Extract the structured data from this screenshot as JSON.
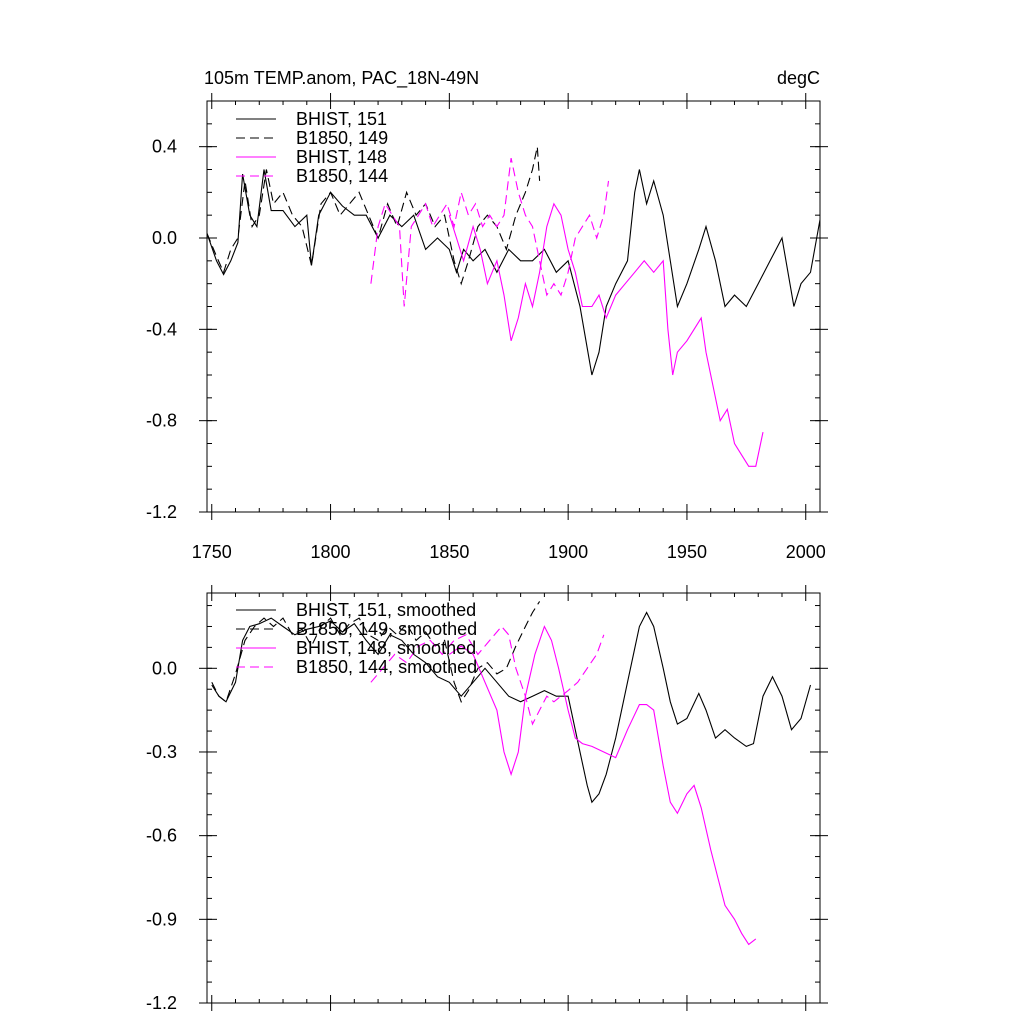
{
  "header": {
    "title": "105m TEMP.anom, PAC_18N-49N",
    "units": "degC"
  },
  "colors": {
    "bhist": "#000000",
    "magenta": "#ff00ff"
  },
  "chart_data": [
    {
      "type": "line",
      "xlim": [
        1748,
        2006
      ],
      "ylim": [
        -1.2,
        0.6
      ],
      "x_ticks": [
        1750,
        1800,
        1850,
        1900,
        1950,
        2000
      ],
      "x_tick_labels": [
        "1750",
        "1800",
        "1850",
        "1900",
        "1950",
        "2000"
      ],
      "y_ticks": [
        0.4,
        0.0,
        -0.4,
        -0.8,
        -1.2
      ],
      "y_tick_labels": [
        "0.4",
        "0.0",
        "-0.4",
        "-0.8",
        "-1.2"
      ],
      "legend_position": "top-left",
      "series": [
        {
          "name": "BHIST, 151",
          "color": "#000000",
          "dash": "solid",
          "x": [
            1748,
            1752,
            1755,
            1758,
            1761,
            1763,
            1766,
            1769,
            1772,
            1775,
            1780,
            1785,
            1790,
            1792,
            1795,
            1800,
            1805,
            1810,
            1815,
            1820,
            1825,
            1830,
            1835,
            1840,
            1845,
            1850,
            1853,
            1856,
            1860,
            1865,
            1870,
            1875,
            1880,
            1885,
            1890,
            1895,
            1900,
            1905,
            1910,
            1913,
            1916,
            1920,
            1925,
            1928,
            1930,
            1933,
            1936,
            1940,
            1943,
            1946,
            1950,
            1955,
            1958,
            1962,
            1966,
            1970,
            1975,
            1980,
            1985,
            1990,
            1995,
            1998,
            2002,
            2006
          ],
          "y": [
            0.02,
            -0.1,
            -0.16,
            -0.1,
            -0.02,
            0.28,
            0.1,
            0.05,
            0.3,
            0.12,
            0.12,
            0.05,
            0.1,
            -0.12,
            0.1,
            0.2,
            0.14,
            0.1,
            0.1,
            0.0,
            0.1,
            0.05,
            0.1,
            -0.05,
            0.0,
            -0.05,
            -0.15,
            -0.05,
            -0.1,
            -0.05,
            -0.15,
            -0.05,
            -0.1,
            -0.1,
            -0.05,
            -0.15,
            -0.1,
            -0.3,
            -0.6,
            -0.5,
            -0.3,
            -0.2,
            -0.1,
            0.2,
            0.3,
            0.15,
            0.25,
            0.1,
            -0.1,
            -0.3,
            -0.2,
            -0.05,
            0.05,
            -0.1,
            -0.3,
            -0.25,
            -0.3,
            -0.2,
            -0.1,
            0.0,
            -0.3,
            -0.2,
            -0.15,
            0.08
          ]
        },
        {
          "name": "B1850, 149",
          "color": "#000000",
          "dash": "dashed",
          "x": [
            1748,
            1752,
            1755,
            1758,
            1761,
            1764,
            1767,
            1770,
            1773,
            1776,
            1780,
            1784,
            1788,
            1792,
            1796,
            1800,
            1804,
            1808,
            1812,
            1816,
            1820,
            1824,
            1828,
            1832,
            1836,
            1840,
            1844,
            1848,
            1852,
            1855,
            1858,
            1862,
            1866,
            1870,
            1874,
            1878,
            1882,
            1885,
            1887,
            1888
          ],
          "y": [
            0.02,
            -0.08,
            -0.15,
            -0.05,
            0.0,
            0.25,
            0.05,
            0.1,
            0.3,
            0.15,
            0.2,
            0.1,
            0.05,
            -0.12,
            0.15,
            0.2,
            0.1,
            0.15,
            0.2,
            0.1,
            0.0,
            0.15,
            0.05,
            0.2,
            0.1,
            0.15,
            0.05,
            0.1,
            -0.1,
            -0.2,
            -0.1,
            0.05,
            0.1,
            0.05,
            -0.05,
            0.1,
            0.2,
            0.3,
            0.4,
            0.25
          ]
        },
        {
          "name": "BHIST, 148",
          "color": "#ff00ff",
          "dash": "solid",
          "x": [
            1850,
            1853,
            1856,
            1860,
            1863,
            1866,
            1870,
            1873,
            1876,
            1879,
            1882,
            1885,
            1888,
            1891,
            1894,
            1897,
            1900,
            1903,
            1906,
            1910,
            1913,
            1916,
            1920,
            1924,
            1928,
            1932,
            1936,
            1940,
            1942,
            1944,
            1946,
            1950,
            1953,
            1956,
            1958,
            1961,
            1964,
            1967,
            1970,
            1973,
            1976,
            1979,
            1982
          ],
          "y": [
            0.1,
            0.0,
            -0.1,
            0.05,
            -0.05,
            -0.2,
            -0.1,
            -0.25,
            -0.45,
            -0.35,
            -0.2,
            -0.3,
            -0.15,
            0.05,
            0.15,
            0.1,
            -0.05,
            -0.15,
            -0.3,
            -0.3,
            -0.25,
            -0.35,
            -0.25,
            -0.2,
            -0.15,
            -0.1,
            -0.15,
            -0.1,
            -0.4,
            -0.6,
            -0.5,
            -0.45,
            -0.4,
            -0.35,
            -0.5,
            -0.65,
            -0.8,
            -0.75,
            -0.9,
            -0.95,
            -1.0,
            -1.0,
            -0.85
          ]
        },
        {
          "name": "B1850, 144",
          "color": "#ff00ff",
          "dash": "dashed",
          "x": [
            1817,
            1820,
            1823,
            1826,
            1829,
            1831,
            1834,
            1837,
            1840,
            1843,
            1846,
            1849,
            1852,
            1855,
            1858,
            1861,
            1864,
            1867,
            1870,
            1873,
            1876,
            1879,
            1882,
            1885,
            1888,
            1891,
            1894,
            1897,
            1900,
            1903,
            1906,
            1909,
            1912,
            1915,
            1917
          ],
          "y": [
            -0.2,
            0.05,
            0.15,
            0.1,
            0.05,
            -0.3,
            0.05,
            0.1,
            0.15,
            0.05,
            0.1,
            0.15,
            0.05,
            0.2,
            0.1,
            0.15,
            0.05,
            0.1,
            0.05,
            0.1,
            0.35,
            0.2,
            0.1,
            0.05,
            -0.1,
            -0.25,
            -0.2,
            -0.25,
            -0.15,
            0.0,
            0.05,
            0.1,
            0.0,
            0.1,
            0.25
          ]
        }
      ]
    },
    {
      "type": "line",
      "xlim": [
        1748,
        2006
      ],
      "ylim": [
        -1.2,
        0.27
      ],
      "x_ticks": [
        1750,
        1800,
        1850,
        1900,
        1950,
        2000
      ],
      "y_ticks": [
        0.0,
        -0.3,
        -0.6,
        -0.9,
        -1.2
      ],
      "y_tick_labels": [
        "0.0",
        "-0.3",
        "-0.6",
        "-0.9",
        "-1.2"
      ],
      "legend_position": "top-left",
      "series": [
        {
          "name": "BHIST, 151, smoothed",
          "color": "#000000",
          "dash": "solid",
          "x": [
            1750,
            1753,
            1756,
            1760,
            1763,
            1766,
            1770,
            1775,
            1780,
            1785,
            1790,
            1795,
            1800,
            1805,
            1810,
            1815,
            1820,
            1825,
            1830,
            1835,
            1840,
            1845,
            1850,
            1855,
            1860,
            1865,
            1870,
            1875,
            1880,
            1885,
            1890,
            1895,
            1900,
            1905,
            1908,
            1910,
            1913,
            1916,
            1920,
            1925,
            1930,
            1933,
            1936,
            1940,
            1943,
            1946,
            1950,
            1955,
            1958,
            1962,
            1966,
            1970,
            1975,
            1978,
            1982,
            1986,
            1990,
            1994,
            1998,
            2002
          ],
          "y": [
            -0.06,
            -0.1,
            -0.12,
            -0.05,
            0.1,
            0.15,
            0.16,
            0.18,
            0.15,
            0.12,
            0.14,
            0.15,
            0.17,
            0.13,
            0.16,
            0.1,
            0.05,
            0.12,
            0.1,
            0.05,
            0.02,
            -0.03,
            -0.05,
            -0.1,
            -0.05,
            0.0,
            -0.05,
            -0.1,
            -0.12,
            -0.1,
            -0.08,
            -0.1,
            -0.1,
            -0.3,
            -0.42,
            -0.48,
            -0.45,
            -0.38,
            -0.25,
            -0.05,
            0.15,
            0.2,
            0.15,
            0.0,
            -0.12,
            -0.2,
            -0.18,
            -0.09,
            -0.15,
            -0.25,
            -0.22,
            -0.25,
            -0.28,
            -0.27,
            -0.1,
            -0.03,
            -0.1,
            -0.22,
            -0.18,
            -0.06
          ]
        },
        {
          "name": "B1850, 149, smoothed",
          "color": "#000000",
          "dash": "dashed",
          "x": [
            1750,
            1753,
            1756,
            1760,
            1764,
            1768,
            1772,
            1776,
            1780,
            1784,
            1788,
            1792,
            1796,
            1800,
            1804,
            1808,
            1812,
            1816,
            1820,
            1824,
            1828,
            1832,
            1836,
            1840,
            1844,
            1848,
            1852,
            1855,
            1858,
            1862,
            1866,
            1870,
            1874,
            1878,
            1882,
            1885,
            1888
          ],
          "y": [
            -0.05,
            -0.1,
            -0.12,
            -0.02,
            0.1,
            0.15,
            0.18,
            0.15,
            0.18,
            0.12,
            0.14,
            0.08,
            0.15,
            0.18,
            0.12,
            0.16,
            0.18,
            0.12,
            0.1,
            0.15,
            0.12,
            0.16,
            0.1,
            0.13,
            0.08,
            0.1,
            -0.05,
            -0.12,
            -0.08,
            0.0,
            0.02,
            -0.02,
            0.0,
            0.08,
            0.15,
            0.2,
            0.24
          ]
        },
        {
          "name": "BHIST, 148, smoothed",
          "color": "#ff00ff",
          "dash": "solid",
          "x": [
            1850,
            1855,
            1860,
            1865,
            1870,
            1873,
            1876,
            1879,
            1882,
            1886,
            1890,
            1893,
            1896,
            1900,
            1903,
            1906,
            1910,
            1915,
            1920,
            1925,
            1930,
            1933,
            1936,
            1940,
            1943,
            1946,
            1950,
            1953,
            1956,
            1960,
            1963,
            1966,
            1970,
            1973,
            1976,
            1979
          ],
          "y": [
            0.05,
            0.08,
            0.05,
            -0.05,
            -0.15,
            -0.3,
            -0.38,
            -0.3,
            -0.1,
            0.05,
            0.15,
            0.1,
            0.0,
            -0.15,
            -0.25,
            -0.27,
            -0.28,
            -0.3,
            -0.32,
            -0.22,
            -0.13,
            -0.13,
            -0.15,
            -0.35,
            -0.48,
            -0.52,
            -0.45,
            -0.42,
            -0.5,
            -0.65,
            -0.75,
            -0.85,
            -0.9,
            -0.95,
            -0.99,
            -0.97
          ]
        },
        {
          "name": "B1850, 144, smoothed",
          "color": "#ff00ff",
          "dash": "dashed",
          "x": [
            1817,
            1822,
            1827,
            1832,
            1837,
            1842,
            1847,
            1852,
            1857,
            1862,
            1867,
            1872,
            1875,
            1878,
            1882,
            1885,
            1888,
            1891,
            1894,
            1897,
            1900,
            1904,
            1908,
            1912,
            1915
          ],
          "y": [
            -0.05,
            0.0,
            0.05,
            0.02,
            0.08,
            0.1,
            0.05,
            0.1,
            0.12,
            0.05,
            0.1,
            0.15,
            0.12,
            0.0,
            -0.1,
            -0.2,
            -0.15,
            -0.1,
            -0.12,
            -0.1,
            -0.08,
            -0.05,
            0.0,
            0.05,
            0.12
          ]
        }
      ]
    }
  ]
}
